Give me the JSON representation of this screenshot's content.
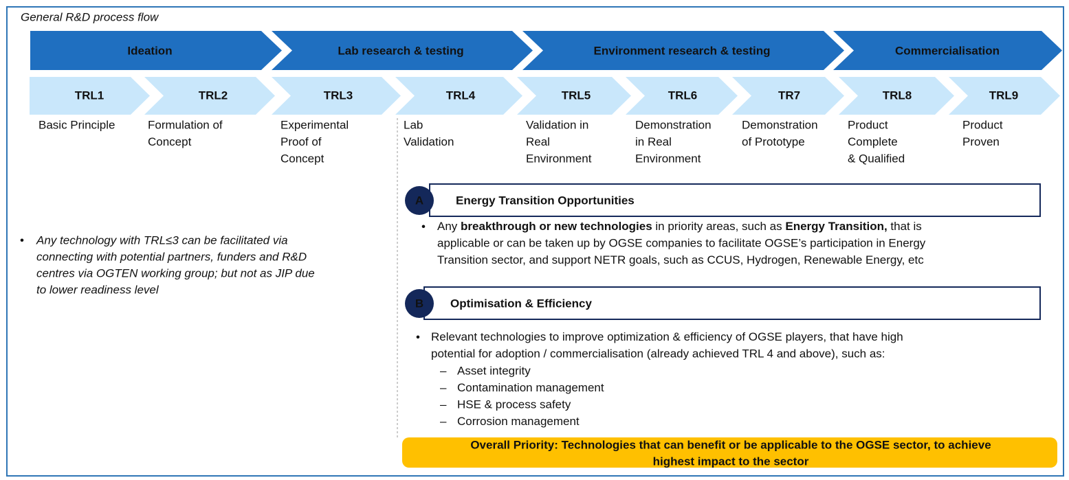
{
  "title": "General R&D process flow",
  "phases": [
    "Ideation",
    "Lab research & testing",
    "Environment research & testing",
    "Commercialisation"
  ],
  "levels": [
    {
      "label": "TRL1",
      "description": [
        "Basic Principle"
      ]
    },
    {
      "label": "TRL2",
      "description": [
        "Formulation of",
        "Concept"
      ]
    },
    {
      "label": "TRL3",
      "description": [
        "Experimental",
        "Proof of",
        "Concept"
      ]
    },
    {
      "label": "TRL4",
      "description": [
        "Lab",
        "Validation"
      ]
    },
    {
      "label": "TRL5",
      "description": [
        "Validation in",
        "Real",
        "Environment"
      ]
    },
    {
      "label": "TRL6",
      "description": [
        "Demonstration",
        "in Real",
        "Environment"
      ]
    },
    {
      "label": "TR7",
      "description": [
        "Demonstration",
        "of Prototype"
      ]
    },
    {
      "label": "TRL8",
      "description": [
        "Product",
        "Complete",
        "& Qualified"
      ]
    },
    {
      "label": "TRL9",
      "description": [
        "Product",
        "Proven"
      ]
    }
  ],
  "note": [
    "Any technology with TRL≤3 can be facilitated via",
    "connecting with potential partners, funders and R&D",
    "centres via OGTEN working group; but not as JIP due",
    "to lower readiness level"
  ],
  "sections": [
    {
      "badge": "A",
      "title": "Energy Transition Opportunities",
      "bullet": [
        [
          "Any ",
          {
            "text": "breakthrough or new technologies",
            "bold": true
          },
          "  in priority areas, such as ",
          {
            "text": "Energy Transition,",
            "bold": true
          },
          " that is"
        ],
        [
          "applicable or can be taken up by OGSE companies to facilitate OGSE’s participation in Energy"
        ],
        [
          "Transition sector, and support NETR goals, such as CCUS, Hydrogen, Renewable Energy, etc"
        ]
      ]
    },
    {
      "badge": "B",
      "title": "Optimisation & Efficiency",
      "bullet": [
        [
          "Relevant technologies to improve optimization & efficiency of OGSE players, that have high"
        ],
        [
          "potential for adoption / commercialisation (already achieved TRL 4 and above), such as:"
        ]
      ],
      "sub_items": [
        "Asset integrity",
        "Contamination management",
        "HSE & process safety",
        "Corrosion management"
      ]
    }
  ],
  "priority": [
    "Overall Priority: Technologies that can benefit or be applicable to the OGSE sector, to achieve",
    "highest impact to the sector"
  ]
}
